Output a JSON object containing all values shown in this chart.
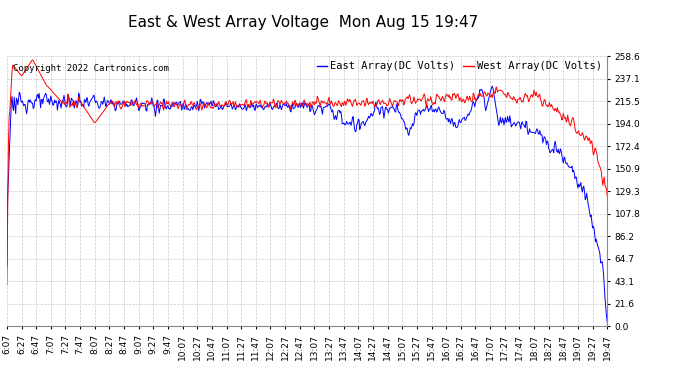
{
  "title": "East & West Array Voltage  Mon Aug 15 19:47",
  "copyright": "Copyright 2022 Cartronics.com",
  "legend_east": "East Array(DC Volts)",
  "legend_west": "West Array(DC Volts)",
  "east_color": "#0000ff",
  "west_color": "#ff0000",
  "background_color": "#ffffff",
  "grid_color": "#bbbbbb",
  "yticks": [
    0.0,
    21.6,
    43.1,
    64.7,
    86.2,
    107.8,
    129.3,
    150.9,
    172.4,
    194.0,
    215.5,
    237.1,
    258.6
  ],
  "ymin": 0.0,
  "ymax": 258.6,
  "title_fontsize": 11,
  "tick_fontsize": 6.5,
  "copyright_fontsize": 6.5,
  "legend_fontsize": 7.5
}
